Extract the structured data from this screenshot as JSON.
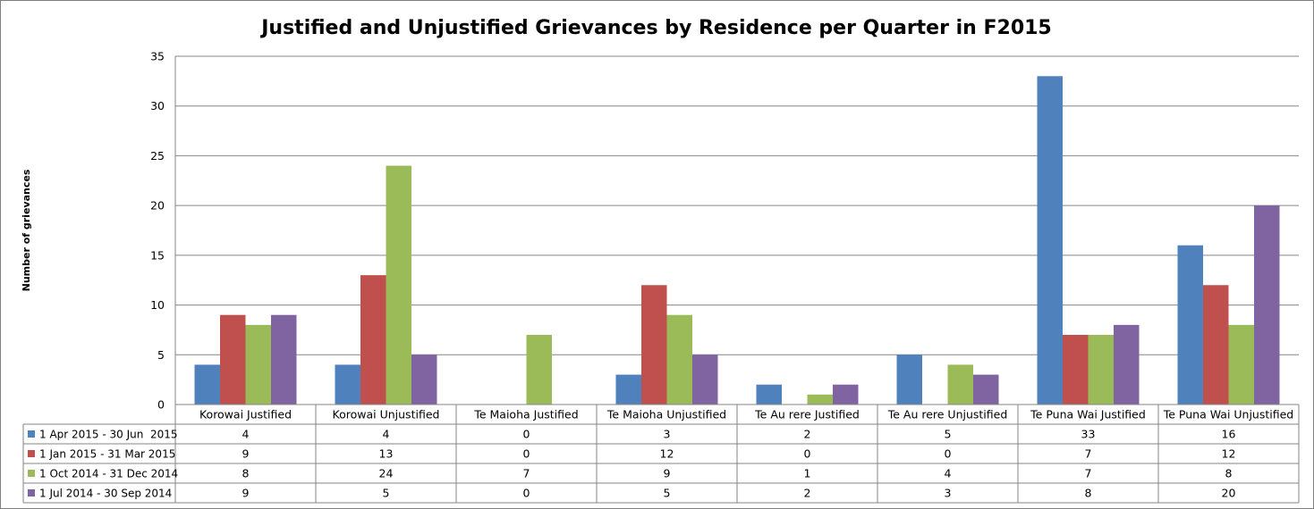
{
  "chart_data": {
    "type": "bar",
    "title": "Justified and Unjustified Grievances by Residence per Quarter in F2015",
    "ylabel": "Number of grievances",
    "xlabel": "",
    "ylim": [
      0,
      35
    ],
    "yticks": [
      "0",
      "5",
      "10",
      "15",
      "20",
      "25",
      "30",
      "35"
    ],
    "grid": true,
    "legend": "data-table",
    "categories": [
      "Korowai Justified",
      "Korowai Unjustified",
      "Te Maioha Justified",
      "Te Maioha  Unjustified",
      "Te Au rere Justified",
      "Te Au rere Unjustified",
      "Te Puna Wai Justified",
      "Te Puna Wai Unjustified"
    ],
    "series": [
      {
        "name": "1 Apr 2015 - 30 Jun  2015",
        "color": "#4f81bd",
        "values": [
          4,
          4,
          0,
          3,
          2,
          5,
          33,
          16
        ]
      },
      {
        "name": "1 Jan 2015 - 31 Mar 2015",
        "color": "#c0504d",
        "values": [
          9,
          13,
          0,
          12,
          0,
          0,
          7,
          12
        ]
      },
      {
        "name": "1 Oct 2014 - 31 Dec 2014",
        "color": "#9bbb59",
        "values": [
          8,
          24,
          7,
          9,
          1,
          4,
          7,
          8
        ]
      },
      {
        "name": "1 Jul 2014 - 30 Sep 2014",
        "color": "#8064a2",
        "values": [
          9,
          5,
          0,
          5,
          2,
          3,
          8,
          20
        ]
      }
    ]
  }
}
